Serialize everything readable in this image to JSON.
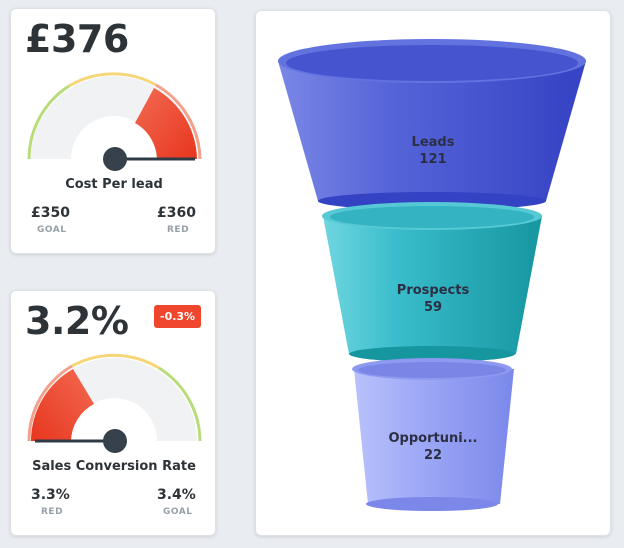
{
  "cost_card": {
    "value": "£376",
    "title": "Cost Per lead",
    "left_value": "£350",
    "left_label": "GOAL",
    "right_value": "£360",
    "right_label": "RED"
  },
  "conversion_card": {
    "value": "3.2%",
    "badge": "-0.3%",
    "title": "Sales Conversion Rate",
    "left_value": "3.3%",
    "left_label": "RED",
    "right_value": "3.4%",
    "right_label": "GOAL"
  },
  "funnel": {
    "segments": [
      {
        "label": "Leads",
        "value": "121",
        "color": "#4a5ad4"
      },
      {
        "label": "Prospects",
        "value": "59",
        "color": "#2fb4c3"
      },
      {
        "label": "Opportuni...",
        "value": "22",
        "color": "#9aa6f4"
      }
    ]
  },
  "colors": {
    "red": "#f0462d",
    "yellow": "#f5d77a",
    "green": "#b9dc7a"
  }
}
